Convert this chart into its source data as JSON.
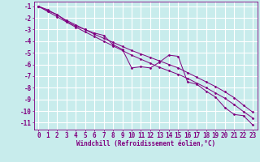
{
  "xlabel": "Windchill (Refroidissement éolien,°C)",
  "bg_color": "#c8ecec",
  "grid_color": "#ffffff",
  "line_color": "#800080",
  "xlim": [
    -0.5,
    23.5
  ],
  "ylim": [
    -11.6,
    -0.6
  ],
  "xticks": [
    0,
    1,
    2,
    3,
    4,
    5,
    6,
    7,
    8,
    9,
    10,
    11,
    12,
    13,
    14,
    15,
    16,
    17,
    18,
    19,
    20,
    21,
    22,
    23
  ],
  "yticks": [
    -1,
    -2,
    -3,
    -4,
    -5,
    -6,
    -7,
    -8,
    -9,
    -10,
    -11
  ],
  "series1_x": [
    0,
    1,
    2,
    3,
    4,
    5,
    6,
    7,
    8,
    9,
    10,
    11,
    12,
    13,
    14,
    15,
    16,
    17,
    18,
    19,
    20,
    21,
    22,
    23
  ],
  "series1_y": [
    -1.0,
    -1.4,
    -1.7,
    -2.3,
    -2.7,
    -3.0,
    -3.3,
    -3.5,
    -4.3,
    -4.7,
    -6.3,
    -6.2,
    -6.3,
    -5.8,
    -5.2,
    -5.3,
    -7.5,
    -7.7,
    -8.3,
    -8.8,
    -9.7,
    -10.3,
    -10.4,
    -11.2
  ],
  "series2_x": [
    0,
    1,
    2,
    3,
    4,
    5,
    6,
    7,
    8,
    9,
    10,
    11,
    12,
    13,
    14,
    15,
    16,
    17,
    18,
    19,
    20,
    21,
    22,
    23
  ],
  "series2_y": [
    -1.0,
    -1.45,
    -1.9,
    -2.35,
    -2.8,
    -3.2,
    -3.6,
    -4.0,
    -4.4,
    -4.8,
    -5.2,
    -5.55,
    -5.9,
    -6.25,
    -6.55,
    -6.85,
    -7.2,
    -7.6,
    -8.0,
    -8.45,
    -8.9,
    -9.45,
    -10.05,
    -10.6
  ],
  "series3_x": [
    0,
    1,
    2,
    3,
    4,
    5,
    6,
    7,
    8,
    9,
    10,
    11,
    12,
    13,
    14,
    15,
    16,
    17,
    18,
    19,
    20,
    21,
    22,
    23
  ],
  "series3_y": [
    -1.0,
    -1.3,
    -1.75,
    -2.2,
    -2.6,
    -3.0,
    -3.4,
    -3.75,
    -4.1,
    -4.45,
    -4.8,
    -5.1,
    -5.4,
    -5.7,
    -6.0,
    -6.3,
    -6.7,
    -7.1,
    -7.5,
    -7.9,
    -8.35,
    -8.85,
    -9.5,
    -10.1
  ],
  "font_size": 5.5,
  "marker": "D",
  "marker_size": 1.5,
  "line_width": 0.7
}
